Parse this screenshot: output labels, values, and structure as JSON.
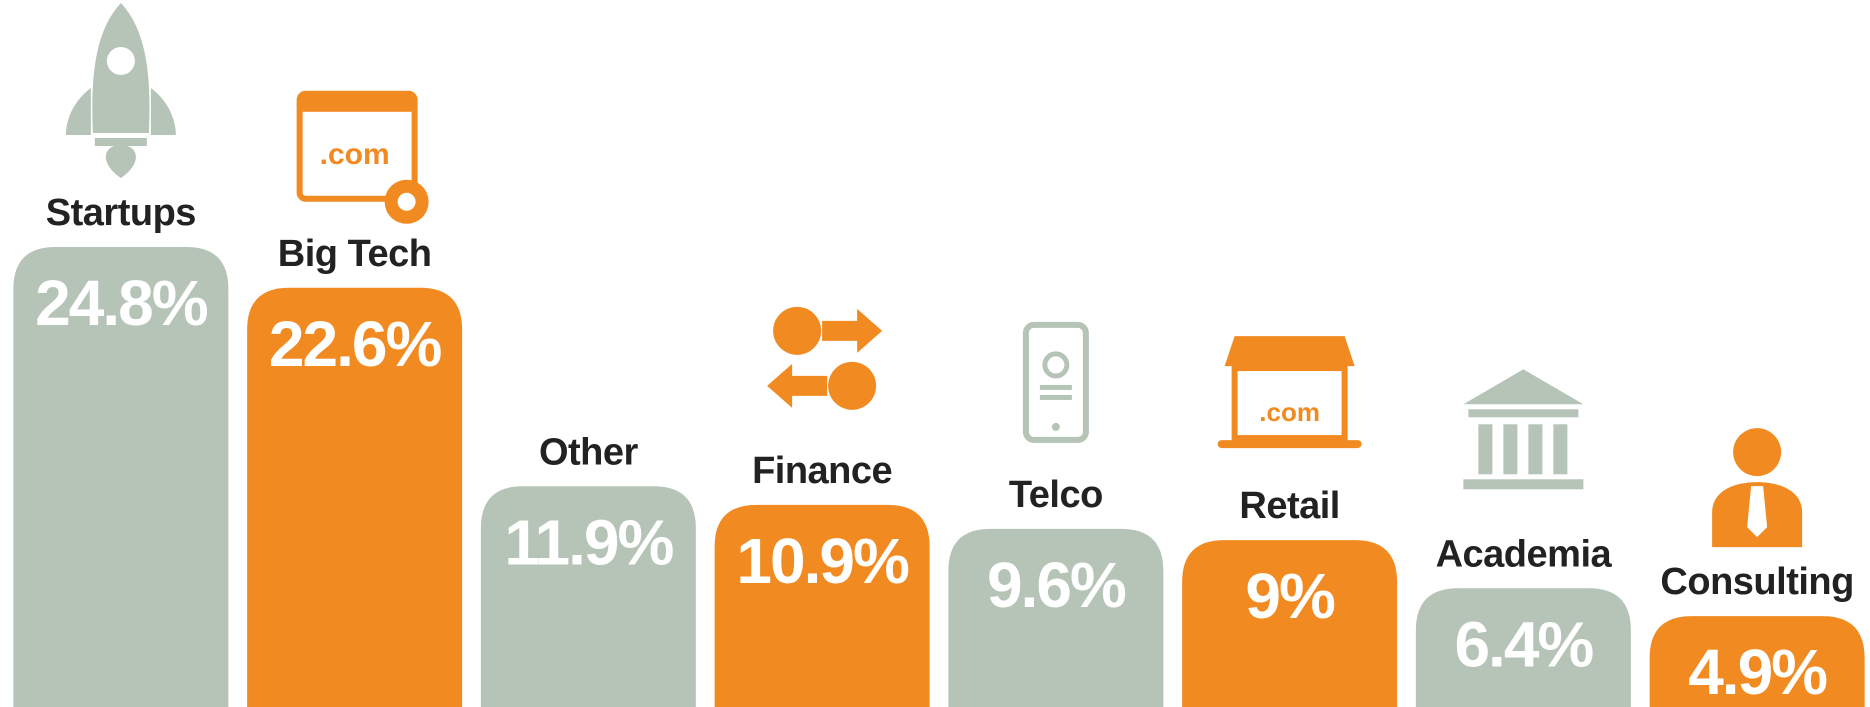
{
  "chart_data": {
    "type": "bar",
    "categories": [
      "Startups",
      "Big Tech",
      "Other",
      "Finance",
      "Telco",
      "Retail",
      "Academia",
      "Consulting"
    ],
    "values": [
      24.8,
      22.6,
      11.9,
      10.9,
      9.6,
      9,
      6.4,
      4.9
    ],
    "value_labels": [
      "24.8%",
      "22.6%",
      "11.9%",
      "10.9%",
      "9.6%",
      "9%",
      "6.4%",
      "4.9%"
    ],
    "colors": [
      "#b5c4b7",
      "#f28a22",
      "#b5c4b7",
      "#f28a22",
      "#b5c4b7",
      "#f28a22",
      "#b5c4b7",
      "#f28a22"
    ]
  }
}
